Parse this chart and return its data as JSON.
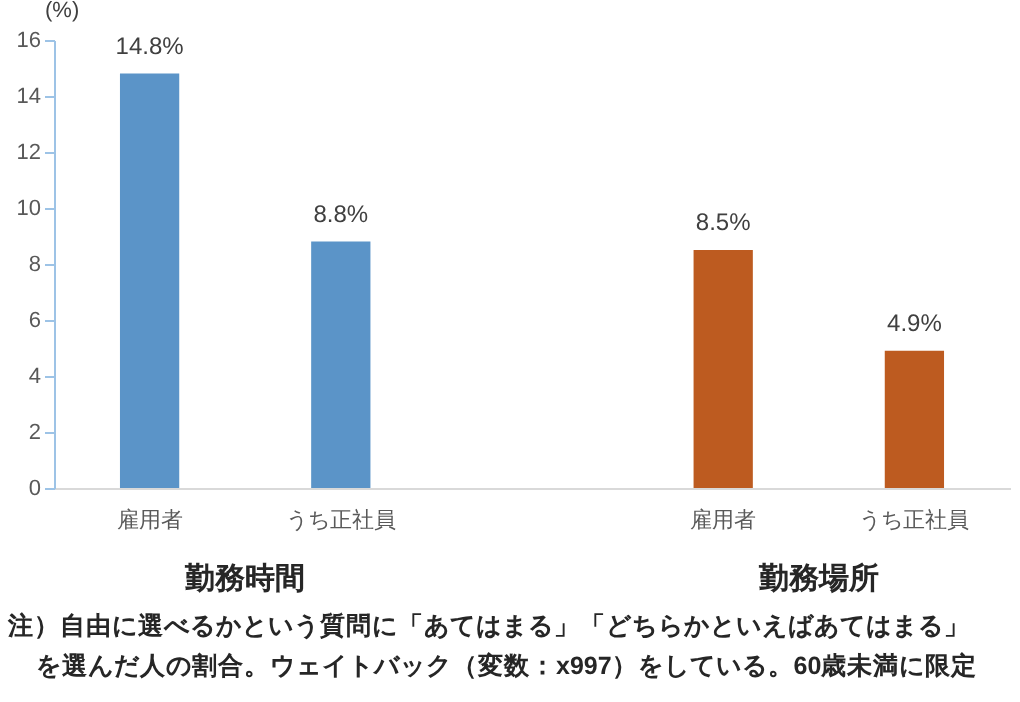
{
  "chart_data": {
    "type": "bar",
    "ylabel": "(%)",
    "categories": [
      "雇用者",
      "うち正社員",
      null,
      "雇用者",
      "うち正社員"
    ],
    "values": [
      14.8,
      8.8,
      null,
      8.5,
      4.9
    ],
    "colors": [
      "#5b94c8",
      "#5b94c8",
      null,
      "#bd5b20",
      "#bd5b20"
    ],
    "value_labels": [
      "14.8%",
      "8.8%",
      null,
      "8.5%",
      "4.9%"
    ],
    "ylim": [
      0,
      16
    ],
    "yticks": [
      0,
      2,
      4,
      6,
      8,
      10,
      12,
      14,
      16
    ],
    "grid": false,
    "annotations": [
      "勤務時間",
      "勤務場所",
      "注）自由に選べるかという質問に「あてはまる」「どちらかといえばあてはまる」",
      "を選んだ人の割合。ウェイトバック（変数：x997）をしている。60歳未満に限定"
    ]
  }
}
